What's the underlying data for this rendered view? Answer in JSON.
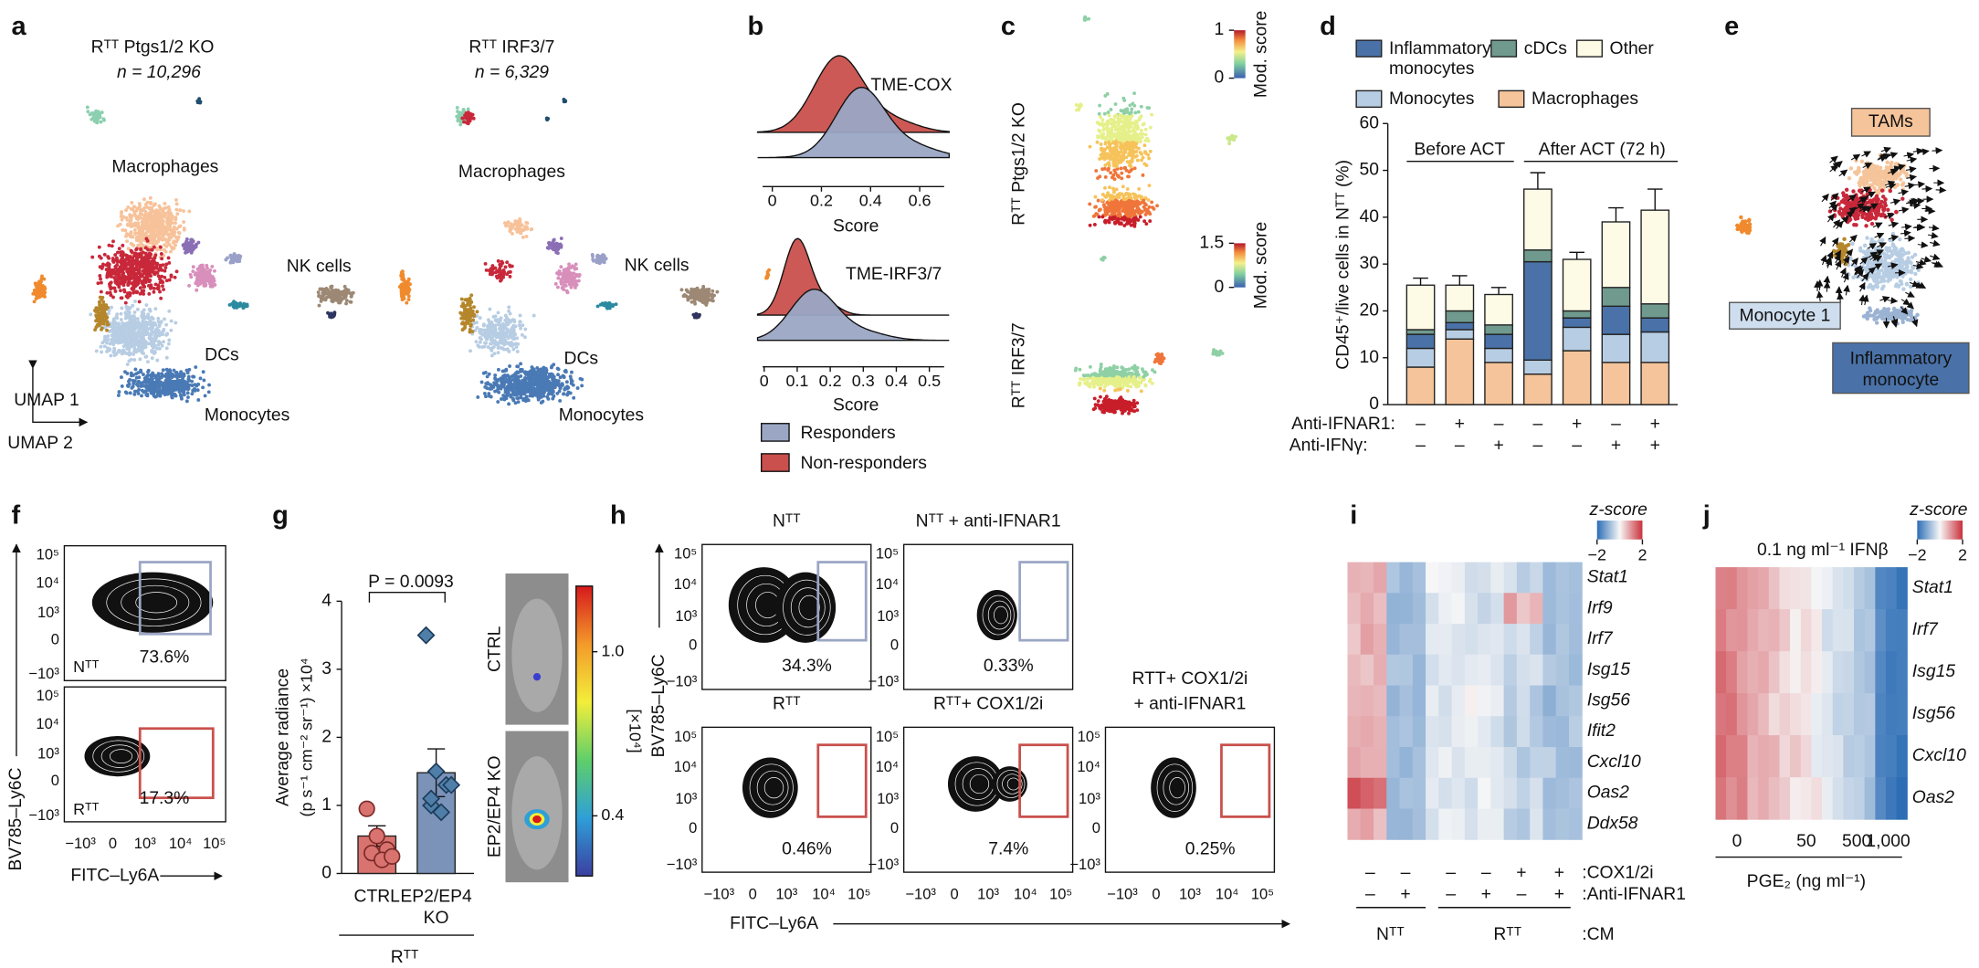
{
  "panels": {
    "a": {
      "letter": "a",
      "groups": [
        {
          "title": "Rᵀᵀ Ptgs1/2 KO",
          "n": "n = 10,296"
        },
        {
          "title": "Rᵀᵀ IRF3/7",
          "n": "n = 6,329"
        }
      ],
      "clusters": [
        "Macrophages",
        "NK cells",
        "DCs",
        "Monocytes"
      ],
      "axes": [
        "UMAP 1",
        "UMAP 2"
      ]
    },
    "b": {
      "letter": "b",
      "plots": [
        {
          "title": "TME-COX",
          "xlim": [
            -0.06,
            0.72
          ],
          "xticks": [
            0,
            0.2,
            0.4,
            0.6
          ]
        },
        {
          "title": "TME-IRF3/7",
          "xlim": [
            -0.02,
            0.56
          ],
          "xticks": [
            0,
            0.1,
            0.2,
            0.3,
            0.4,
            0.5
          ]
        }
      ],
      "xlabel": "Score",
      "legend": [
        {
          "name": "Responders",
          "color": "#9aa6c4"
        },
        {
          "name": "Non-responders",
          "color": "#c9504c"
        }
      ]
    },
    "c": {
      "letter": "c",
      "rows": [
        {
          "label": "Rᵀᵀ Ptgs1/2 KO",
          "cbar_lim": [
            0,
            1
          ],
          "cbar_ticks": [
            0,
            1
          ]
        },
        {
          "label": "Rᵀᵀ IRF3/7",
          "cbar_lim": [
            0,
            1.5
          ],
          "cbar_ticks": [
            0,
            1.5
          ]
        }
      ],
      "cbar_label": "Mod. score"
    },
    "e": {
      "letter": "e",
      "labels": [
        "TAMs",
        "Monocyte 1",
        "Inflammatory monocyte"
      ]
    },
    "f": {
      "letter": "f",
      "plots": [
        {
          "sample": "Nᵀᵀ",
          "percent": "73.6%"
        },
        {
          "sample": "Rᵀᵀ",
          "percent": "17.3%"
        }
      ],
      "ylabel": "BV785–Ly6C",
      "xlabel": "FITC–Ly6A"
    },
    "h": {
      "letter": "h",
      "plots": [
        {
          "title": [
            "Nᵀᵀ"
          ],
          "percent": "34.3%"
        },
        {
          "title": [
            "Nᵀᵀ + anti-IFNAR1"
          ],
          "percent": "0.33%"
        },
        {
          "title": [
            "Rᵀᵀ"
          ],
          "percent": "0.46%"
        },
        {
          "title": [
            "Rᵀᵀ+ COX1/2i"
          ],
          "percent": "7.4%"
        },
        {
          "title": [
            "RTT+ COX1/2i",
            "+ anti-IFNAR1"
          ],
          "percent": "0.25%"
        }
      ],
      "ylabel": "BV785–Ly6C",
      "xlabel": "FITC–Ly6A"
    },
    "flow_ticks": [
      "−10³",
      "0",
      "10³",
      "10⁴",
      "10⁵"
    ],
    "i": {
      "letter": "i",
      "legend": "z-score",
      "cbar_ticks": [
        {
          "value": -2,
          "label": "−2"
        },
        2
      ],
      "genes": [
        "Stat1",
        "Irf9",
        "Irf7",
        "Isg15",
        "Isg56",
        "Ifit2",
        "Cxcl10",
        "Oas2",
        "Ddx58"
      ],
      "conditions": [
        {
          "label": ":COX1/2i",
          "signs": [
            "–",
            "–",
            "–",
            "–",
            "+",
            "+"
          ]
        },
        {
          "label": ":Anti-IFNAR1",
          "signs": [
            "–",
            "+",
            "–",
            "+",
            "–",
            "+"
          ]
        }
      ],
      "groups": [
        "Nᵀᵀ",
        "Rᵀᵀ"
      ],
      "group_label": ":CM"
    },
    "j": {
      "letter": "j",
      "legend": "z-score",
      "cbar_ticks": [
        {
          "value": -2,
          "label": "−2"
        },
        2
      ],
      "title": "0.1 ng ml⁻¹ IFNβ",
      "genes": [
        "Stat1",
        "Irf7",
        "Isg15",
        "Isg56",
        "Cxcl10",
        "Oas2"
      ],
      "doses": [
        "0",
        "50",
        "500",
        "1,000"
      ],
      "xlabel": "PGE₂ (ng ml⁻¹)"
    }
  },
  "chart_data": [
    {
      "type": "bar",
      "letter": "d",
      "stacked": true,
      "ylabel": "CD45⁺/live cells in Nᵀᵀ (%)",
      "categories": [
        null,
        null,
        null,
        null,
        null,
        null,
        null
      ],
      "ylim": [
        0,
        60
      ],
      "yticks": [
        0,
        10,
        20,
        30,
        40,
        50,
        60
      ],
      "series": [
        {
          "name": "Macrophages",
          "color": "#f5c49a",
          "values": [
            8,
            14,
            9,
            6.5,
            11.5,
            9,
            9
          ]
        },
        {
          "name": "Monocytes",
          "color": "#b7cde3",
          "values": [
            4,
            2,
            3,
            3,
            5,
            6,
            6.5
          ]
        },
        {
          "name": "Inflammatory monocytes",
          "color": "#4a72a8",
          "values": [
            3,
            1.5,
            3,
            21,
            2,
            6,
            3
          ]
        },
        {
          "name": "cDCs",
          "color": "#6f9a8d",
          "values": [
            1,
            2.5,
            2,
            2.5,
            1.5,
            4,
            3
          ]
        },
        {
          "name": "Other",
          "color": "#fdfbe6",
          "values": [
            9.5,
            5.5,
            6.5,
            13,
            11,
            14,
            20
          ],
          "errors": [
            1.5,
            2,
            1.5,
            3.5,
            1.5,
            3,
            4.5
          ]
        }
      ],
      "groups": [
        "Before ACT",
        "After ACT (72 h)"
      ],
      "treatments": [
        {
          "label": "Anti-IFNAR1:",
          "signs": [
            "–",
            "+",
            "–",
            "–",
            "+",
            "–",
            "+"
          ]
        },
        {
          "label": "Anti-IFNγ:",
          "signs": [
            "–",
            "–",
            "+",
            "–",
            "–",
            "+",
            "+"
          ]
        }
      ]
    },
    {
      "type": "bar",
      "letter": "g",
      "ylabel": [
        "Average radiance",
        "(p s⁻¹ cm⁻² sr⁻¹) ×10⁴"
      ],
      "categories": [
        "CTRL",
        "EP2/EP4 KO"
      ],
      "values": [
        0.55,
        1.48
      ],
      "errors": [
        0.15,
        0.35
      ],
      "points": [
        [
          0.95,
          0.55,
          0.35,
          0.3,
          0.2,
          0.25
        ],
        [
          3.5,
          1.5,
          1.3,
          1.0,
          0.9,
          1.3,
          1.1
        ]
      ],
      "colors": [
        "#d9736f",
        "#7b93b8"
      ],
      "ylim": [
        0,
        4
      ],
      "yticks": [
        0,
        1,
        2,
        3,
        4
      ],
      "annotation": "P = 0.0093",
      "group": "Rᵀᵀ",
      "images": [
        "CTRL",
        "EP2/EP4 KO"
      ],
      "cbar_lim": [
        0.18,
        1.24
      ],
      "cbar_ticks": [
        {
          "value": 1,
          "label": "1.0"
        },
        0.4
      ],
      "cbar_unit": "[×10⁴]"
    }
  ]
}
